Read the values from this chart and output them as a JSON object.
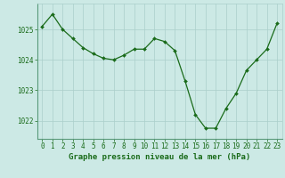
{
  "hours": [
    0,
    1,
    2,
    3,
    4,
    5,
    6,
    7,
    8,
    9,
    10,
    11,
    12,
    13,
    14,
    15,
    16,
    17,
    18,
    19,
    20,
    21,
    22,
    23
  ],
  "pressure": [
    1025.1,
    1025.5,
    1025.0,
    1024.7,
    1024.4,
    1024.2,
    1024.05,
    1024.0,
    1024.15,
    1024.35,
    1024.35,
    1024.7,
    1024.6,
    1024.3,
    1023.3,
    1022.2,
    1021.75,
    1021.75,
    1022.4,
    1022.9,
    1023.65,
    1024.0,
    1024.35,
    1025.2
  ],
  "line_color": "#1a6b1a",
  "marker": "D",
  "marker_size": 2.0,
  "bg_color": "#cce9e5",
  "plot_bg_color": "#cce9e5",
  "grid_color": "#aacfca",
  "ylabel_ticks": [
    1022,
    1023,
    1024,
    1025
  ],
  "xlabel_label": "Graphe pression niveau de la mer (hPa)",
  "xlabel_fontsize": 6.5,
  "tick_fontsize": 5.5,
  "ylim": [
    1021.4,
    1025.85
  ],
  "xlim": [
    -0.5,
    23.5
  ]
}
